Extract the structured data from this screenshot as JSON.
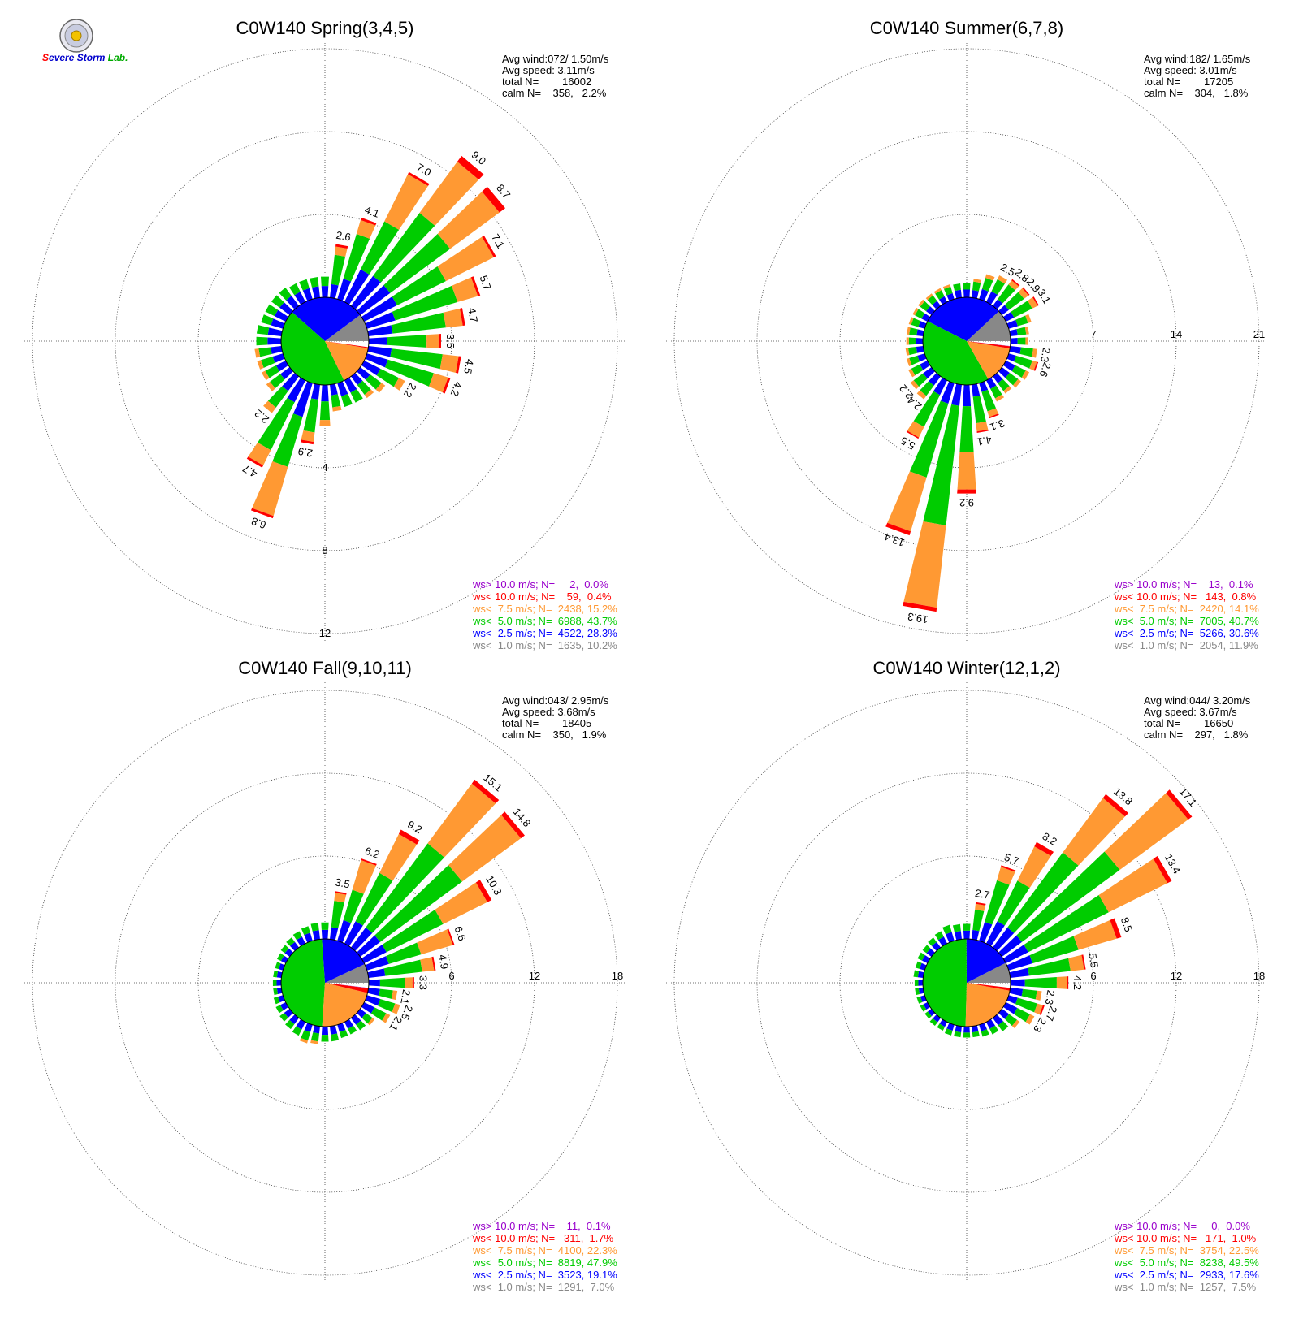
{
  "logo": {
    "text": "Severe Storm Lab."
  },
  "colors": {
    "gt10": "#9900cc",
    "lt10": "#ff0000",
    "lt75": "#ff9933",
    "lt5": "#00cc00",
    "lt25": "#0000ff",
    "lt1": "#888888"
  },
  "chart_data": [
    {
      "type": "wind-rose",
      "title": "C0W140 Spring(3,4,5)",
      "stats": [
        "Avg wind:072/ 1.50m/s",
        "Avg speed: 3.11m/s",
        "total N=        16002",
        "calm N=    358,   2.2%"
      ],
      "ring_labels": [
        "4",
        "8",
        "12"
      ],
      "ring_values": [
        4,
        8,
        12
      ],
      "sector_width_deg": 10,
      "sectors": [
        {
          "dir": 0,
          "total": 1.0
        },
        {
          "dir": 10,
          "total": 2.6
        },
        {
          "dir": 20,
          "total": 4.1
        },
        {
          "dir": 30,
          "total": 7.0
        },
        {
          "dir": 40,
          "total": 9.0
        },
        {
          "dir": 50,
          "total": 8.7
        },
        {
          "dir": 60,
          "total": 7.1
        },
        {
          "dir": 70,
          "total": 5.7
        },
        {
          "dir": 80,
          "total": 4.7
        },
        {
          "dir": 90,
          "total": 3.5
        },
        {
          "dir": 100,
          "total": 4.5
        },
        {
          "dir": 110,
          "total": 4.2
        },
        {
          "dir": 120,
          "total": 2.2
        },
        {
          "dir": 130,
          "total": 1.5
        },
        {
          "dir": 140,
          "total": 1.3
        },
        {
          "dir": 150,
          "total": 1.2
        },
        {
          "dir": 160,
          "total": 1.2
        },
        {
          "dir": 170,
          "total": 1.3
        },
        {
          "dir": 180,
          "total": 2.0
        },
        {
          "dir": 190,
          "total": 2.9
        },
        {
          "dir": 200,
          "total": 6.8
        },
        {
          "dir": 210,
          "total": 4.7
        },
        {
          "dir": 220,
          "total": 2.2
        },
        {
          "dir": 230,
          "total": 1.4
        },
        {
          "dir": 240,
          "total": 1.3
        },
        {
          "dir": 250,
          "total": 1.3
        },
        {
          "dir": 260,
          "total": 1.3
        },
        {
          "dir": 270,
          "total": 1.2
        },
        {
          "dir": 280,
          "total": 1.2
        },
        {
          "dir": 290,
          "total": 1.1
        },
        {
          "dir": 300,
          "total": 1.1
        },
        {
          "dir": 310,
          "total": 1.1
        },
        {
          "dir": 320,
          "total": 1.1
        },
        {
          "dir": 330,
          "total": 1.0
        },
        {
          "dir": 340,
          "total": 1.0
        },
        {
          "dir": 350,
          "total": 1.0
        }
      ],
      "labeled": [
        {
          "dir": 10,
          "text": "2.6"
        },
        {
          "dir": 20,
          "text": "4.1"
        },
        {
          "dir": 30,
          "text": "7.0"
        },
        {
          "dir": 40,
          "text": "9.0"
        },
        {
          "dir": 50,
          "text": "8.7"
        },
        {
          "dir": 60,
          "text": "7.1"
        },
        {
          "dir": 70,
          "text": "5.7"
        },
        {
          "dir": 80,
          "text": "4.7"
        },
        {
          "dir": 90,
          "text": "3.5"
        },
        {
          "dir": 100,
          "text": "4.5"
        },
        {
          "dir": 110,
          "text": "4.2"
        },
        {
          "dir": 120,
          "text": "2.2"
        },
        {
          "dir": 190,
          "text": "2.9"
        },
        {
          "dir": 200,
          "text": "6.8"
        },
        {
          "dir": 210,
          "text": "4.7"
        },
        {
          "dir": 220,
          "text": "2.2"
        }
      ],
      "pie": [
        {
          "cls": "lt1",
          "pct": 10.2
        },
        {
          "cls": "lt25",
          "pct": 28.3
        },
        {
          "cls": "lt5",
          "pct": 43.7
        },
        {
          "cls": "lt75",
          "pct": 15.2
        },
        {
          "cls": "lt10",
          "pct": 0.4
        },
        {
          "cls": "gt10",
          "pct": 0.0
        }
      ],
      "legend": [
        {
          "cls": "gt10",
          "text": "ws> 10.0 m/s; N=     2,  0.0%"
        },
        {
          "cls": "lt10",
          "text": "ws< 10.0 m/s; N=    59,  0.4%"
        },
        {
          "cls": "lt75",
          "text": "ws<  7.5 m/s; N=  2438, 15.2%"
        },
        {
          "cls": "lt5",
          "text": "ws<  5.0 m/s; N=  6988, 43.7%"
        },
        {
          "cls": "lt25",
          "text": "ws<  2.5 m/s; N=  4522, 28.3%"
        },
        {
          "cls": "lt1",
          "text": "ws<  1.0 m/s; N=  1635, 10.2%"
        }
      ]
    },
    {
      "type": "wind-rose",
      "title": "C0W140 Summer(6,7,8)",
      "stats": [
        "Avg wind:182/ 1.65m/s",
        "Avg speed: 3.01m/s",
        "total N=        17205",
        "calm N=    304,   1.8%"
      ],
      "ring_labels": [
        "7",
        "14",
        "21"
      ],
      "ring_values": [
        7,
        14,
        21
      ],
      "sector_width_deg": 10,
      "sectors": [
        {
          "dir": 0,
          "total": 1.2
        },
        {
          "dir": 10,
          "total": 1.6
        },
        {
          "dir": 20,
          "total": 2.2
        },
        {
          "dir": 30,
          "total": 2.5
        },
        {
          "dir": 40,
          "total": 2.8
        },
        {
          "dir": 50,
          "total": 2.9
        },
        {
          "dir": 60,
          "total": 3.1
        },
        {
          "dir": 70,
          "total": 2.0
        },
        {
          "dir": 80,
          "total": 1.6
        },
        {
          "dir": 90,
          "total": 1.5
        },
        {
          "dir": 100,
          "total": 2.3
        },
        {
          "dir": 110,
          "total": 2.6
        },
        {
          "dir": 120,
          "total": 2.2
        },
        {
          "dir": 130,
          "total": 2.0
        },
        {
          "dir": 140,
          "total": 1.8
        },
        {
          "dir": 150,
          "total": 2.0
        },
        {
          "dir": 160,
          "total": 3.1
        },
        {
          "dir": 170,
          "total": 4.1
        },
        {
          "dir": 180,
          "total": 9.2
        },
        {
          "dir": 190,
          "total": 19.3
        },
        {
          "dir": 200,
          "total": 13.4
        },
        {
          "dir": 210,
          "total": 5.5
        },
        {
          "dir": 220,
          "total": 2.4
        },
        {
          "dir": 230,
          "total": 2.2
        },
        {
          "dir": 240,
          "total": 1.8
        },
        {
          "dir": 250,
          "total": 1.6
        },
        {
          "dir": 260,
          "total": 1.5
        },
        {
          "dir": 270,
          "total": 1.4
        },
        {
          "dir": 280,
          "total": 1.4
        },
        {
          "dir": 290,
          "total": 1.4
        },
        {
          "dir": 300,
          "total": 1.4
        },
        {
          "dir": 310,
          "total": 1.4
        },
        {
          "dir": 320,
          "total": 1.3
        },
        {
          "dir": 330,
          "total": 1.3
        },
        {
          "dir": 340,
          "total": 1.3
        },
        {
          "dir": 350,
          "total": 1.2
        }
      ],
      "labeled": [
        {
          "dir": 30,
          "text": "2.5"
        },
        {
          "dir": 40,
          "text": "2.8"
        },
        {
          "dir": 50,
          "text": "2.9"
        },
        {
          "dir": 60,
          "text": "3.1"
        },
        {
          "dir": 100,
          "text": "2.3"
        },
        {
          "dir": 110,
          "text": "2.6"
        },
        {
          "dir": 160,
          "text": "3.1"
        },
        {
          "dir": 170,
          "text": "4.1"
        },
        {
          "dir": 180,
          "text": "9.2"
        },
        {
          "dir": 190,
          "text": "19.3"
        },
        {
          "dir": 200,
          "text": "13.4"
        },
        {
          "dir": 210,
          "text": "5.5"
        },
        {
          "dir": 220,
          "text": "2.4"
        },
        {
          "dir": 230,
          "text": "2.2"
        }
      ],
      "pie": [
        {
          "cls": "lt1",
          "pct": 11.9
        },
        {
          "cls": "lt25",
          "pct": 30.6
        },
        {
          "cls": "lt5",
          "pct": 40.7
        },
        {
          "cls": "lt75",
          "pct": 14.1
        },
        {
          "cls": "lt10",
          "pct": 0.8
        },
        {
          "cls": "gt10",
          "pct": 0.1
        }
      ],
      "legend": [
        {
          "cls": "gt10",
          "text": "ws> 10.0 m/s; N=    13,  0.1%"
        },
        {
          "cls": "lt10",
          "text": "ws< 10.0 m/s; N=   143,  0.8%"
        },
        {
          "cls": "lt75",
          "text": "ws<  7.5 m/s; N=  2420, 14.1%"
        },
        {
          "cls": "lt5",
          "text": "ws<  5.0 m/s; N=  7005, 40.7%"
        },
        {
          "cls": "lt25",
          "text": "ws<  2.5 m/s; N=  5266, 30.6%"
        },
        {
          "cls": "lt1",
          "text": "ws<  1.0 m/s; N=  2054, 11.9%"
        }
      ]
    },
    {
      "type": "wind-rose",
      "title": "C0W140 Fall(9,10,11)",
      "stats": [
        "Avg wind:043/ 2.95m/s",
        "Avg speed: 3.68m/s",
        "total N=        18405",
        "calm N=    350,   1.9%"
      ],
      "ring_labels": [
        "6",
        "12",
        "18"
      ],
      "ring_values": [
        6,
        12,
        18
      ],
      "sector_width_deg": 10,
      "sectors": [
        {
          "dir": 0,
          "total": 1.2
        },
        {
          "dir": 10,
          "total": 3.5
        },
        {
          "dir": 20,
          "total": 6.2
        },
        {
          "dir": 30,
          "total": 9.2
        },
        {
          "dir": 40,
          "total": 15.1
        },
        {
          "dir": 50,
          "total": 14.8
        },
        {
          "dir": 60,
          "total": 10.3
        },
        {
          "dir": 70,
          "total": 6.6
        },
        {
          "dir": 80,
          "total": 4.9
        },
        {
          "dir": 90,
          "total": 3.3
        },
        {
          "dir": 100,
          "total": 2.1
        },
        {
          "dir": 110,
          "total": 2.5
        },
        {
          "dir": 120,
          "total": 2.1
        },
        {
          "dir": 130,
          "total": 1.3
        },
        {
          "dir": 140,
          "total": 1.1
        },
        {
          "dir": 150,
          "total": 1.0
        },
        {
          "dir": 160,
          "total": 1.0
        },
        {
          "dir": 170,
          "total": 1.1
        },
        {
          "dir": 180,
          "total": 1.1
        },
        {
          "dir": 190,
          "total": 1.3
        },
        {
          "dir": 200,
          "total": 1.4
        },
        {
          "dir": 210,
          "total": 1.1
        },
        {
          "dir": 220,
          "total": 1.0
        },
        {
          "dir": 230,
          "total": 0.9
        },
        {
          "dir": 240,
          "total": 0.8
        },
        {
          "dir": 250,
          "total": 0.7
        },
        {
          "dir": 260,
          "total": 0.6
        },
        {
          "dir": 270,
          "total": 0.6
        },
        {
          "dir": 280,
          "total": 0.6
        },
        {
          "dir": 290,
          "total": 0.6
        },
        {
          "dir": 300,
          "total": 0.7
        },
        {
          "dir": 310,
          "total": 0.8
        },
        {
          "dir": 320,
          "total": 0.9
        },
        {
          "dir": 330,
          "total": 1.0
        },
        {
          "dir": 340,
          "total": 1.1
        },
        {
          "dir": 350,
          "total": 1.2
        }
      ],
      "labeled": [
        {
          "dir": 10,
          "text": "3.5"
        },
        {
          "dir": 20,
          "text": "6.2"
        },
        {
          "dir": 30,
          "text": "9.2"
        },
        {
          "dir": 40,
          "text": "15.1"
        },
        {
          "dir": 50,
          "text": "14.8"
        },
        {
          "dir": 60,
          "text": "10.3"
        },
        {
          "dir": 70,
          "text": "6.6"
        },
        {
          "dir": 80,
          "text": "4.9"
        },
        {
          "dir": 90,
          "text": "3.3"
        },
        {
          "dir": 100,
          "text": "2.1"
        },
        {
          "dir": 110,
          "text": "2.5"
        },
        {
          "dir": 120,
          "text": "2.1"
        }
      ],
      "pie": [
        {
          "cls": "lt1",
          "pct": 7.0
        },
        {
          "cls": "lt25",
          "pct": 19.1
        },
        {
          "cls": "lt5",
          "pct": 47.9
        },
        {
          "cls": "lt75",
          "pct": 22.3
        },
        {
          "cls": "lt10",
          "pct": 1.7
        },
        {
          "cls": "gt10",
          "pct": 0.1
        }
      ],
      "legend": [
        {
          "cls": "gt10",
          "text": "ws> 10.0 m/s; N=    11,  0.1%"
        },
        {
          "cls": "lt10",
          "text": "ws< 10.0 m/s; N=   311,  1.7%"
        },
        {
          "cls": "lt75",
          "text": "ws<  7.5 m/s; N=  4100, 22.3%"
        },
        {
          "cls": "lt5",
          "text": "ws<  5.0 m/s; N=  8819, 47.9%"
        },
        {
          "cls": "lt25",
          "text": "ws<  2.5 m/s; N=  3523, 19.1%"
        },
        {
          "cls": "lt1",
          "text": "ws<  1.0 m/s; N=  1291,  7.0%"
        }
      ]
    },
    {
      "type": "wind-rose",
      "title": "C0W140 Winter(12,1,2)",
      "stats": [
        "Avg wind:044/ 3.20m/s",
        "Avg speed: 3.67m/s",
        "total N=        16650",
        "calm N=    297,   1.8%"
      ],
      "ring_labels": [
        "6",
        "12",
        "18"
      ],
      "ring_values": [
        6,
        12,
        18
      ],
      "sector_width_deg": 10,
      "sectors": [
        {
          "dir": 0,
          "total": 1.1
        },
        {
          "dir": 10,
          "total": 2.7
        },
        {
          "dir": 20,
          "total": 5.7
        },
        {
          "dir": 30,
          "total": 8.2
        },
        {
          "dir": 40,
          "total": 13.8
        },
        {
          "dir": 50,
          "total": 17.1
        },
        {
          "dir": 60,
          "total": 13.4
        },
        {
          "dir": 70,
          "total": 8.5
        },
        {
          "dir": 80,
          "total": 5.5
        },
        {
          "dir": 90,
          "total": 4.2
        },
        {
          "dir": 100,
          "total": 2.3
        },
        {
          "dir": 110,
          "total": 2.7
        },
        {
          "dir": 120,
          "total": 2.3
        },
        {
          "dir": 130,
          "total": 1.6
        },
        {
          "dir": 140,
          "total": 1.2
        },
        {
          "dir": 150,
          "total": 1.0
        },
        {
          "dir": 160,
          "total": 0.9
        },
        {
          "dir": 170,
          "total": 0.8
        },
        {
          "dir": 180,
          "total": 0.8
        },
        {
          "dir": 190,
          "total": 0.8
        },
        {
          "dir": 200,
          "total": 0.8
        },
        {
          "dir": 210,
          "total": 0.7
        },
        {
          "dir": 220,
          "total": 0.7
        },
        {
          "dir": 230,
          "total": 0.6
        },
        {
          "dir": 240,
          "total": 0.6
        },
        {
          "dir": 250,
          "total": 0.6
        },
        {
          "dir": 260,
          "total": 0.6
        },
        {
          "dir": 270,
          "total": 0.6
        },
        {
          "dir": 280,
          "total": 0.7
        },
        {
          "dir": 290,
          "total": 0.7
        },
        {
          "dir": 300,
          "total": 0.8
        },
        {
          "dir": 310,
          "total": 0.8
        },
        {
          "dir": 320,
          "total": 0.9
        },
        {
          "dir": 330,
          "total": 1.0
        },
        {
          "dir": 340,
          "total": 1.2
        },
        {
          "dir": 350,
          "total": 1.1
        }
      ],
      "labeled": [
        {
          "dir": 10,
          "text": "2.7"
        },
        {
          "dir": 20,
          "text": "5.7"
        },
        {
          "dir": 30,
          "text": "8.2"
        },
        {
          "dir": 40,
          "text": "13.8"
        },
        {
          "dir": 50,
          "text": "17.1"
        },
        {
          "dir": 60,
          "text": "13.4"
        },
        {
          "dir": 70,
          "text": "8.5"
        },
        {
          "dir": 80,
          "text": "5.5"
        },
        {
          "dir": 90,
          "text": "4.2"
        },
        {
          "dir": 100,
          "text": "2.3"
        },
        {
          "dir": 110,
          "text": "2.7"
        },
        {
          "dir": 120,
          "text": "2.3"
        }
      ],
      "pie": [
        {
          "cls": "lt1",
          "pct": 7.5
        },
        {
          "cls": "lt25",
          "pct": 17.6
        },
        {
          "cls": "lt5",
          "pct": 49.5
        },
        {
          "cls": "lt75",
          "pct": 22.5
        },
        {
          "cls": "lt10",
          "pct": 1.0
        },
        {
          "cls": "gt10",
          "pct": 0.0
        }
      ],
      "legend": [
        {
          "cls": "gt10",
          "text": "ws> 10.0 m/s; N=     0,  0.0%"
        },
        {
          "cls": "lt10",
          "text": "ws< 10.0 m/s; N=   171,  1.0%"
        },
        {
          "cls": "lt75",
          "text": "ws<  7.5 m/s; N=  3754, 22.5%"
        },
        {
          "cls": "lt5",
          "text": "ws<  5.0 m/s; N=  8238, 49.5%"
        },
        {
          "cls": "lt25",
          "text": "ws<  2.5 m/s; N=  2933, 17.6%"
        },
        {
          "cls": "lt1",
          "text": "ws<  1.0 m/s; N=  1257,  7.5%"
        }
      ]
    }
  ]
}
